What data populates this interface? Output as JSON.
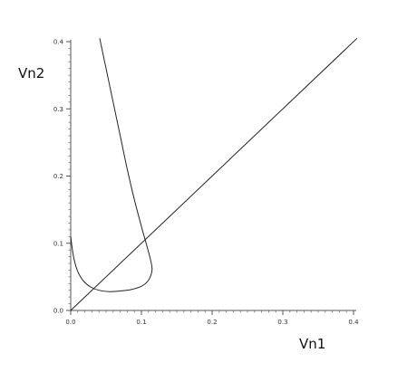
{
  "chart_data": {
    "type": "line",
    "title": "",
    "xlabel": "Vn1",
    "ylabel": "Vn2",
    "xlim": [
      0,
      0.4
    ],
    "ylim": [
      0,
      0.4
    ],
    "x_ticks": [
      {
        "value": 0.0,
        "label": "0.0"
      },
      {
        "value": 0.1,
        "label": "0.1"
      },
      {
        "value": 0.2,
        "label": "0.2"
      },
      {
        "value": 0.3,
        "label": "0.3"
      },
      {
        "value": 0.4,
        "label": "0.4"
      }
    ],
    "y_ticks": [
      {
        "value": 0.0,
        "label": "0.0"
      },
      {
        "value": 0.1,
        "label": "0.1"
      },
      {
        "value": 0.2,
        "label": "0.2"
      },
      {
        "value": 0.3,
        "label": "0.3"
      },
      {
        "value": 0.4,
        "label": "0.4"
      }
    ],
    "minor_ticks_per_major": 10,
    "grid": false,
    "series": [
      {
        "points": [
          [
            0.0,
            0.0
          ],
          [
            0.405,
            0.405
          ]
        ]
      },
      {
        "points": [
          [
            0.0,
            0.11
          ],
          [
            0.002,
            0.093
          ],
          [
            0.005,
            0.075
          ],
          [
            0.01,
            0.058
          ],
          [
            0.018,
            0.044
          ],
          [
            0.028,
            0.035
          ],
          [
            0.04,
            0.03
          ],
          [
            0.055,
            0.028
          ],
          [
            0.07,
            0.029
          ],
          [
            0.085,
            0.031
          ],
          [
            0.1,
            0.036
          ],
          [
            0.11,
            0.045
          ],
          [
            0.115,
            0.06
          ],
          [
            0.113,
            0.075
          ],
          [
            0.108,
            0.095
          ],
          [
            0.1,
            0.125
          ],
          [
            0.09,
            0.165
          ],
          [
            0.08,
            0.21
          ],
          [
            0.07,
            0.26
          ],
          [
            0.06,
            0.31
          ],
          [
            0.05,
            0.36
          ],
          [
            0.041,
            0.405
          ]
        ]
      }
    ]
  }
}
